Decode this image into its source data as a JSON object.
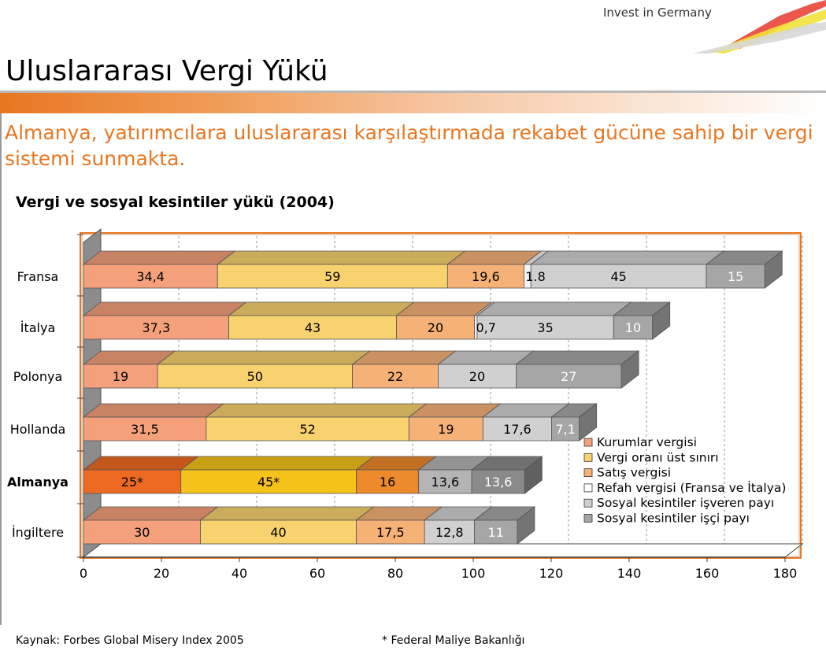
{
  "header": {
    "brand": "Invest in Germany",
    "logo": "invest-in-germany-stripes-logo"
  },
  "page": {
    "title": "Uluslararası Vergi Yükü",
    "subtitle": "Almanya, yatırımcılara uluslararası karşılaştırmada rekabet gücüne sahip bir vergi sistemi sunmakta."
  },
  "chart_data": {
    "type": "bar",
    "orientation": "horizontal-stacked-3d",
    "title": "Vergi ve sosyal kesintiler yükü (2004)",
    "categories": [
      "Fransa",
      "İtalya",
      "Polonya",
      "Hollanda",
      "Almanya",
      "İngiltere"
    ],
    "highlight_category": "Almanya",
    "xlim": [
      0,
      180
    ],
    "xticks": [
      "0",
      "20",
      "40",
      "60",
      "80",
      "100",
      "120",
      "140",
      "160",
      "180"
    ],
    "grid": "vertical-dashed",
    "legend_position": "right-inside",
    "series": [
      {
        "name": "Kurumlar vergisi",
        "color": "#f4a07a",
        "highlight_color": "#ee6a22",
        "values": [
          34.4,
          37.3,
          19,
          31.5,
          25,
          30
        ],
        "labels": [
          "34,4",
          "37,3",
          "19",
          "31,5",
          "25*",
          "30"
        ]
      },
      {
        "name": "Vergi oranı üst sınırı",
        "color": "#f8d26e",
        "highlight_color": "#f5c21b",
        "values": [
          59,
          43,
          50,
          52,
          45,
          40
        ],
        "labels": [
          "59",
          "43",
          "50",
          "52",
          "45*",
          "40"
        ]
      },
      {
        "name": "Satış vergisi",
        "color": "#f6b177",
        "highlight_color": "#ec8a2c",
        "values": [
          19.6,
          20,
          22,
          19,
          16,
          17.5
        ],
        "labels": [
          "19,6",
          "20",
          "22",
          "19",
          "16",
          "17,5"
        ]
      },
      {
        "name": "Refah vergisi (Fransa ve İtalya)",
        "color": "#f2f2f2",
        "highlight_color": "#f2f2f2",
        "values": [
          1.8,
          0.7,
          0,
          0,
          0,
          0
        ],
        "labels": [
          "1.8",
          "0,7",
          "",
          "",
          "",
          ""
        ]
      },
      {
        "name": "Sosyal kesintiler işveren payı",
        "color": "#d0d0d0",
        "highlight_color": "#b4b4b4",
        "values": [
          45,
          35,
          20,
          17.6,
          13.6,
          12.8
        ],
        "labels": [
          "45",
          "35",
          "20",
          "17,6",
          "13,6",
          "12,8"
        ]
      },
      {
        "name": "Sosyal kesintiler işçi payı",
        "color": "#a6a6a6",
        "highlight_color": "#8a8a8a",
        "values": [
          15,
          10,
          27,
          7.1,
          13.6,
          11
        ],
        "labels": [
          "15",
          "10",
          "27",
          "7,1",
          "13,6",
          "11"
        ]
      }
    ]
  },
  "footer": {
    "source": "Kaynak: Forbes Global Misery Index 2005",
    "footnote": "* Federal Maliye Bakanlığı"
  }
}
